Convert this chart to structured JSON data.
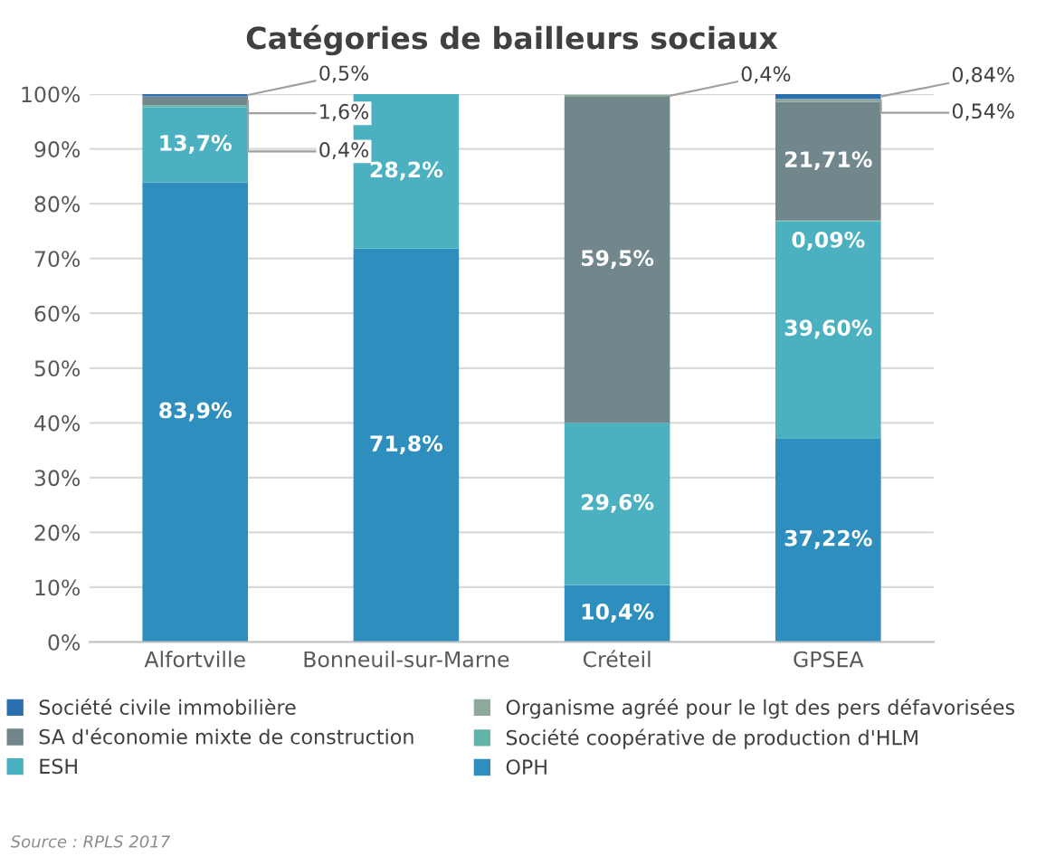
{
  "chart_data": {
    "type": "bar",
    "title": "Catégories de bailleurs sociaux",
    "stacked": true,
    "categories": [
      "Alfortville",
      "Bonneuil-sur-Marne",
      "Créteil",
      "GPSEA"
    ],
    "series": [
      {
        "name": "OPH",
        "color": "#2e8fbf",
        "values": [
          83.9,
          71.8,
          10.4,
          37.22
        ],
        "value_labels": [
          "83,9%",
          "71,8%",
          "10,4%",
          "37,22%"
        ]
      },
      {
        "name": "ESH",
        "color": "#4bb1c1",
        "values": [
          13.7,
          28.2,
          29.6,
          39.6
        ],
        "value_labels": [
          "13,7%",
          "28,2%",
          "29,6%",
          "39,60%"
        ]
      },
      {
        "name": "Société coopérative de production d'HLM",
        "color": "#62b5a6",
        "values": [
          0.4,
          null,
          null,
          0.09
        ],
        "value_labels": [
          "0,4%",
          null,
          null,
          "0,09%"
        ]
      },
      {
        "name": "SA d'économie mixte de construction",
        "color": "#72878b",
        "values": [
          1.6,
          null,
          59.5,
          21.71
        ],
        "value_labels": [
          "1,6%",
          null,
          "59,5%",
          "21,71%"
        ]
      },
      {
        "name": "Organisme agréé pour le lgt des pers défavorisées",
        "color": "#8fa89c",
        "values": [
          null,
          null,
          0.4,
          0.54
        ],
        "value_labels": [
          null,
          null,
          "0,4%",
          "0,54%"
        ]
      },
      {
        "name": "Société civile immobilière",
        "color": "#2c6fae",
        "values": [
          0.5,
          null,
          null,
          0.84
        ],
        "value_labels": [
          "0,5%",
          null,
          null,
          "0,84%"
        ]
      }
    ],
    "ylim": [
      0,
      100
    ],
    "yticks": [
      {
        "value": 0,
        "label": "0%"
      },
      {
        "value": 10,
        "label": "10%"
      },
      {
        "value": 20,
        "label": "20%"
      },
      {
        "value": 30,
        "label": "30%"
      },
      {
        "value": 40,
        "label": "40%"
      },
      {
        "value": 50,
        "label": "50%"
      },
      {
        "value": 60,
        "label": "60%"
      },
      {
        "value": 70,
        "label": "70%"
      },
      {
        "value": 80,
        "label": "80%"
      },
      {
        "value": 90,
        "label": "90%"
      },
      {
        "value": 100,
        "label": "100%"
      }
    ],
    "grid": "y",
    "legend": "bottom",
    "annotations": [
      "Source : RPLS 2017"
    ]
  }
}
